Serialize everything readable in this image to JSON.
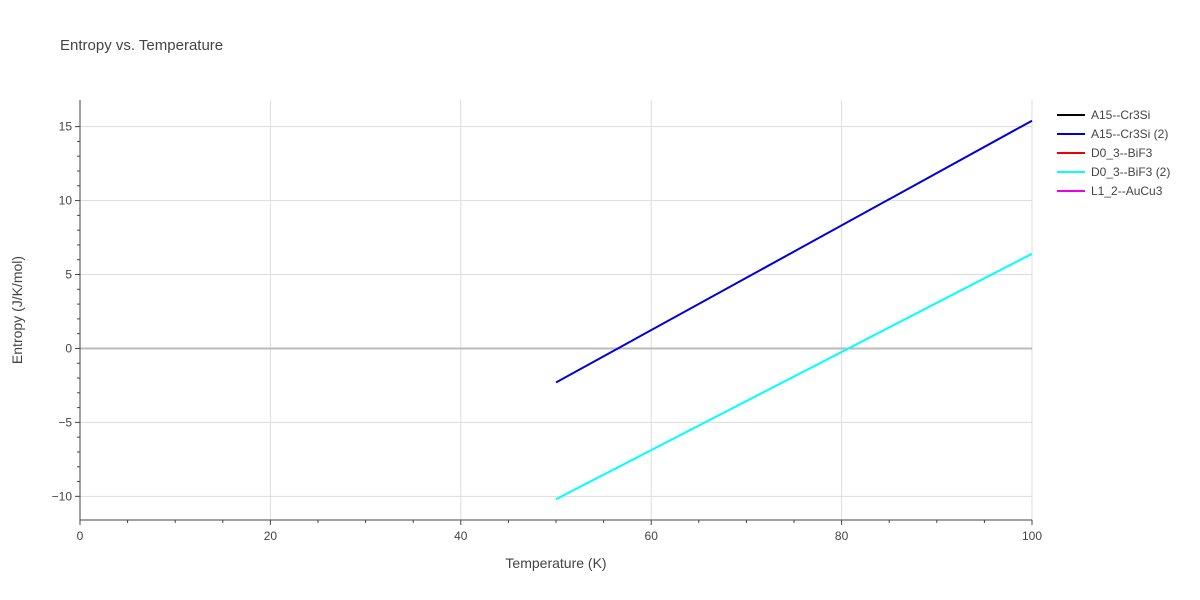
{
  "chart_data": {
    "type": "line",
    "title": "Entropy vs. Temperature",
    "xlabel": "Temperature (K)",
    "ylabel": "Entropy (J/K/mol)",
    "xlim": [
      0,
      100
    ],
    "ylim": [
      -11.6,
      16.8
    ],
    "x_ticks": [
      0,
      20,
      40,
      60,
      80,
      100
    ],
    "y_ticks": [
      -10,
      -5,
      0,
      5,
      10,
      15
    ],
    "x_tick_labels": [
      "0",
      "20",
      "40",
      "60",
      "80",
      "100"
    ],
    "y_tick_labels": [
      "−10",
      "−5",
      "0",
      "5",
      "10",
      "15"
    ],
    "grid": true,
    "legend_position": "right",
    "series": [
      {
        "name": "A15--Cr3Si",
        "color": "#000000",
        "x": [],
        "y": []
      },
      {
        "name": "A15--Cr3Si (2)",
        "color": "#0000dd",
        "x": [
          50,
          100
        ],
        "y": [
          -2.3,
          15.4
        ]
      },
      {
        "name": "D0_3--BiF3",
        "color": "#ee0000",
        "x": [],
        "y": []
      },
      {
        "name": "D0_3--BiF3 (2)",
        "color": "#00ffff",
        "x": [
          50,
          100
        ],
        "y": [
          -10.2,
          6.4
        ]
      },
      {
        "name": "L1_2--AuCu3",
        "color": "#ee00ee",
        "x": [],
        "y": []
      }
    ]
  }
}
